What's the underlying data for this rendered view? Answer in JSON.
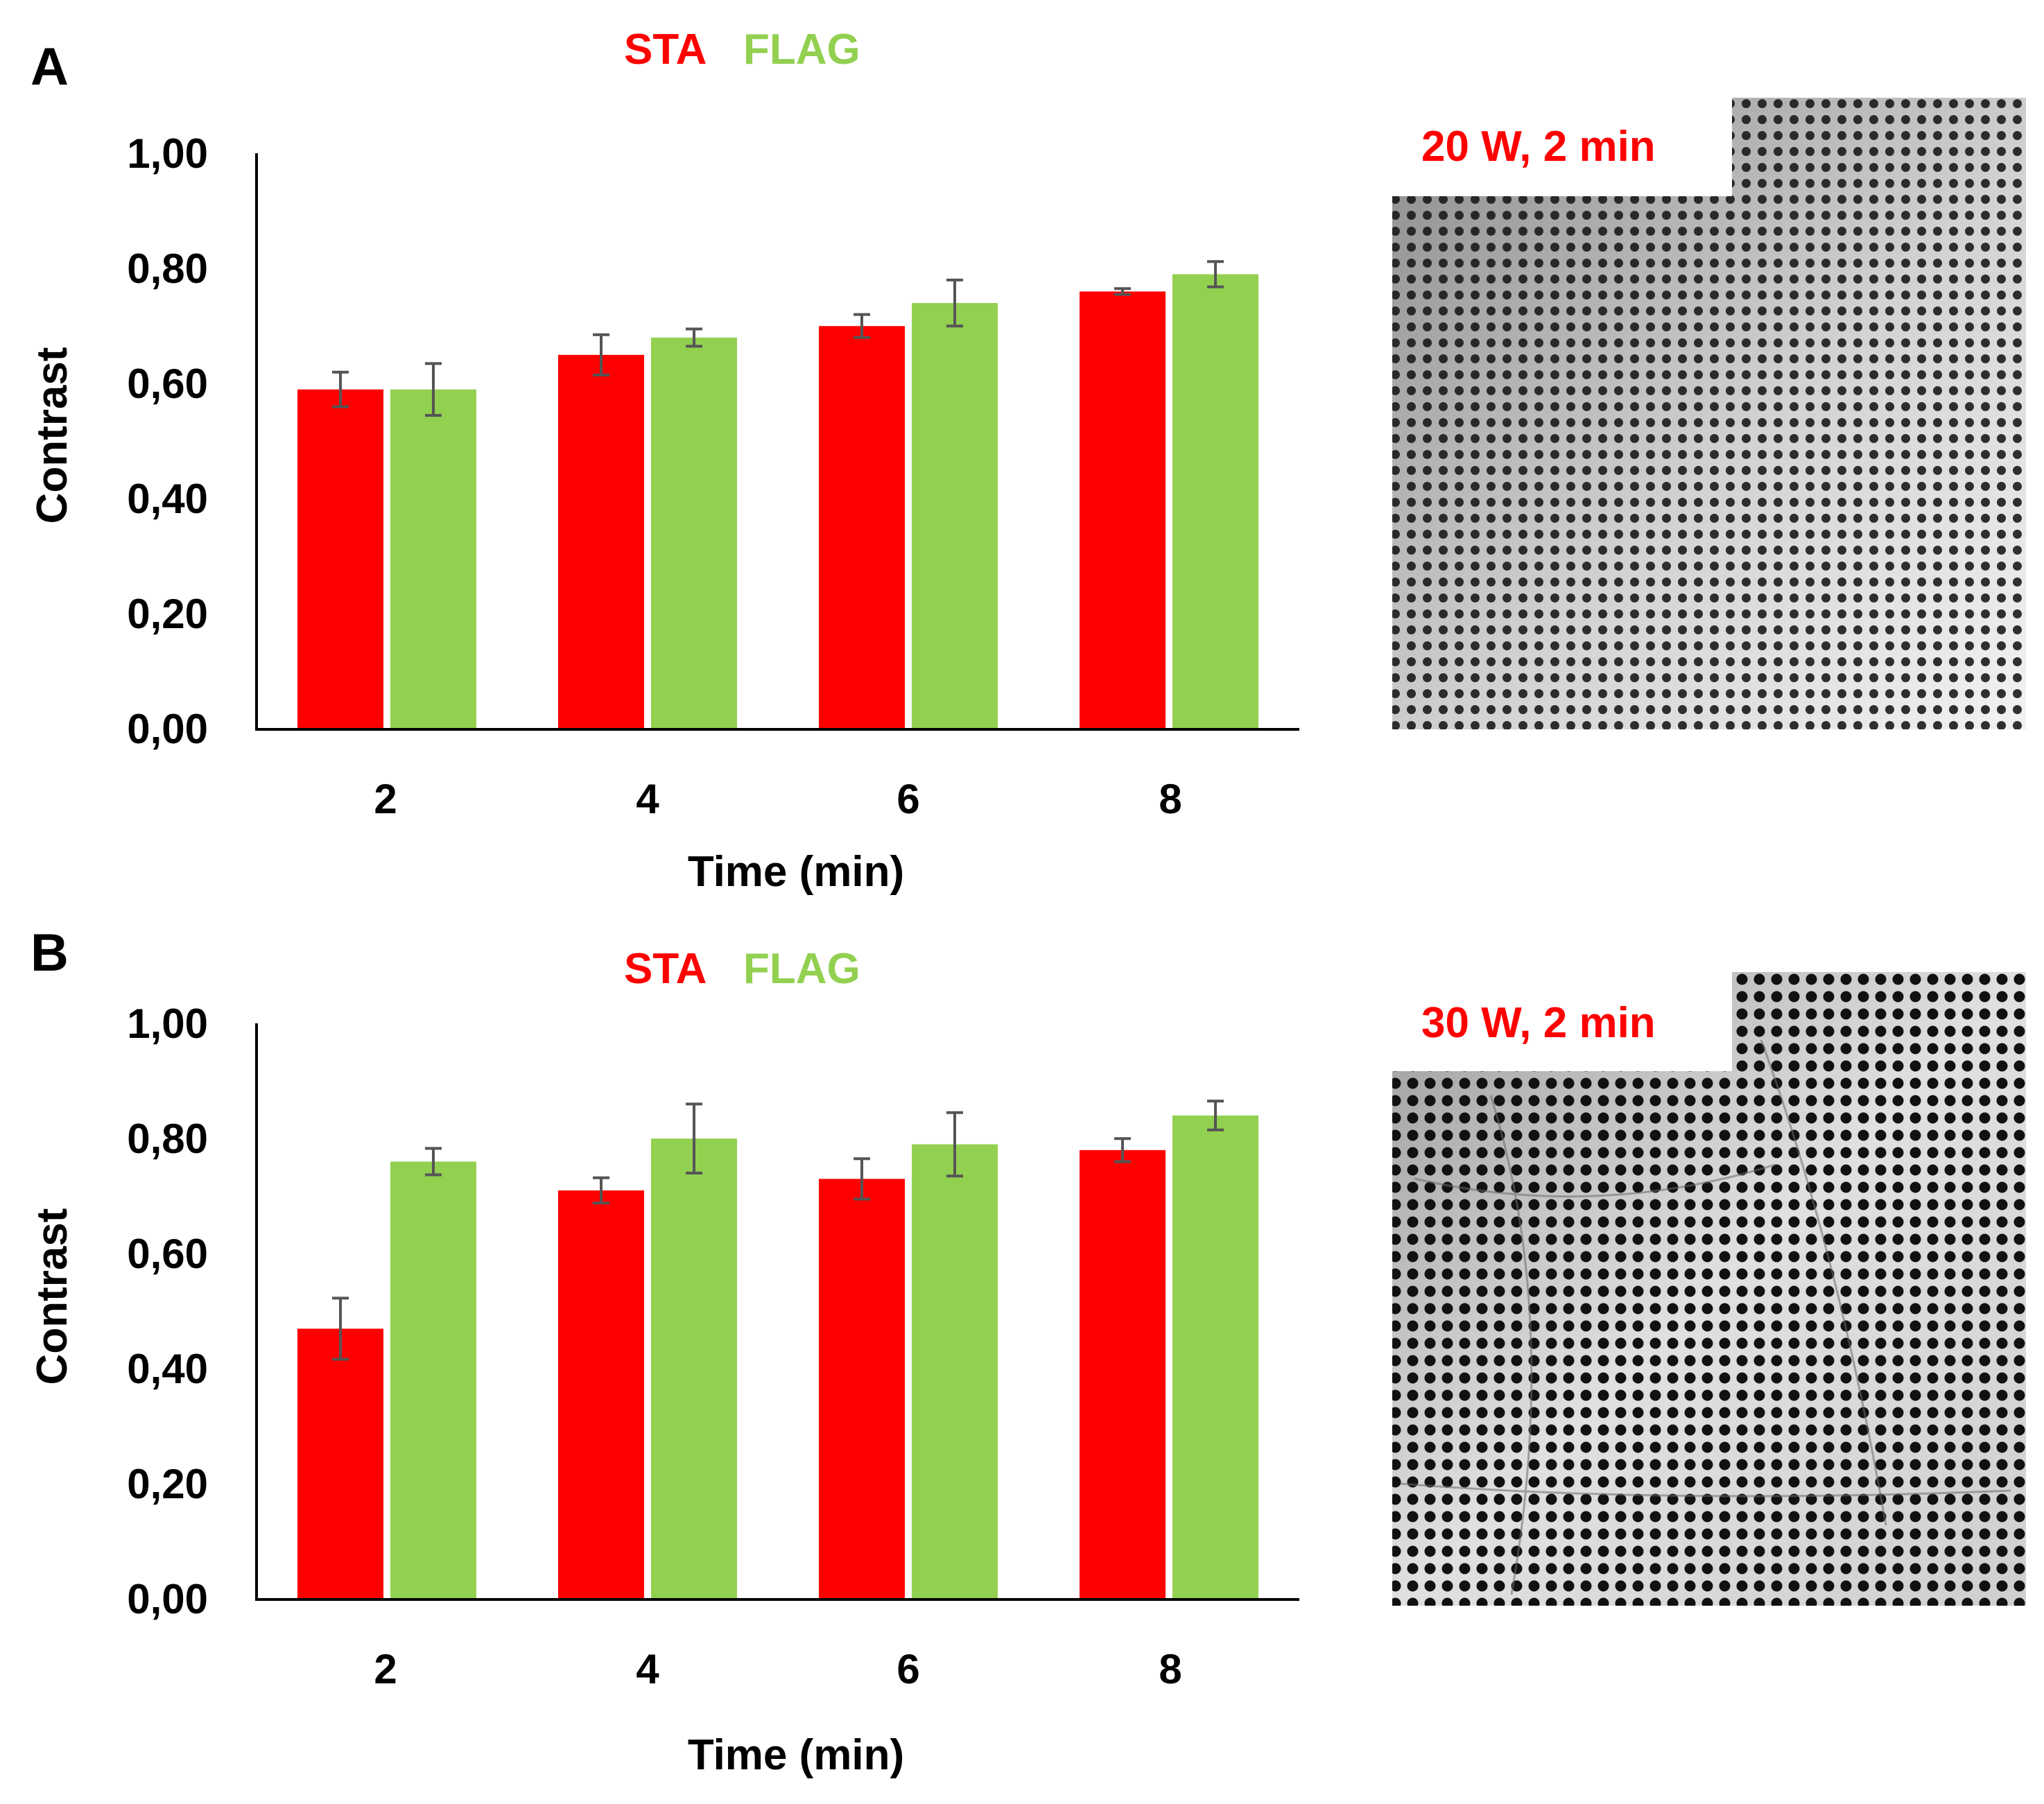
{
  "colors": {
    "sta": "#ff0000",
    "flag": "#92d050",
    "error_bar": "#555555",
    "axis": "#000000"
  },
  "chart_data": [
    {
      "panel": "A",
      "type": "bar",
      "legend": [
        "STA",
        "FLAG"
      ],
      "legend_placement": "top-center",
      "categories": [
        "2",
        "4",
        "6",
        "8"
      ],
      "series": [
        {
          "name": "STA",
          "values": [
            0.59,
            0.65,
            0.7,
            0.76
          ],
          "errors": [
            0.03,
            0.035,
            0.02,
            0.005
          ]
        },
        {
          "name": "FLAG",
          "values": [
            0.59,
            0.68,
            0.74,
            0.79
          ],
          "errors": [
            0.045,
            0.015,
            0.04,
            0.022
          ]
        }
      ],
      "xlabel": "Time (min)",
      "ylabel": "Contrast",
      "ylim": [
        0,
        1
      ],
      "yticks": [
        "0,00",
        "0,20",
        "0,40",
        "0,60",
        "0,80",
        "1,00"
      ],
      "grid": false,
      "image_label": "20 W, 2 min"
    },
    {
      "panel": "B",
      "type": "bar",
      "legend": [
        "STA",
        "FLAG"
      ],
      "legend_placement": "top-center",
      "categories": [
        "2",
        "4",
        "6",
        "8"
      ],
      "series": [
        {
          "name": "STA",
          "values": [
            0.47,
            0.71,
            0.73,
            0.78
          ],
          "errors": [
            0.053,
            0.022,
            0.035,
            0.02
          ]
        },
        {
          "name": "FLAG",
          "values": [
            0.76,
            0.8,
            0.79,
            0.84
          ],
          "errors": [
            0.023,
            0.06,
            0.055,
            0.025
          ]
        }
      ],
      "xlabel": "Time (min)",
      "ylabel": "Contrast",
      "ylim": [
        0,
        1
      ],
      "yticks": [
        "0,00",
        "0,20",
        "0,40",
        "0,60",
        "0,80",
        "1,00"
      ],
      "grid": false,
      "image_label": "30 W, 2 min"
    }
  ]
}
